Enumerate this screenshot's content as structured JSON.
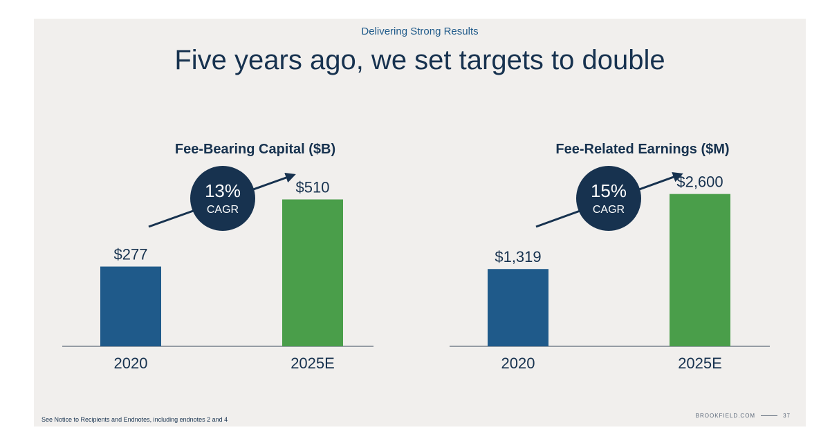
{
  "header": {
    "kicker": "Delivering Strong Results",
    "title": "Five years ago, we set targets to double"
  },
  "colors": {
    "background": "#f1efed",
    "navy": "#17324f",
    "bar_2020": "#1f5a8a",
    "bar_2025": "#4a9e4a"
  },
  "chart_data": [
    {
      "type": "bar",
      "title": "Fee-Bearing Capital ($B)",
      "categories": [
        "2020",
        "2025E"
      ],
      "values": [
        277,
        510
      ],
      "value_labels": [
        "$277",
        "$510"
      ],
      "cagr": {
        "value": "13%",
        "label": "CAGR"
      },
      "ylim": [
        0,
        600
      ]
    },
    {
      "type": "bar",
      "title": "Fee-Related Earnings ($M)",
      "categories": [
        "2020",
        "2025E"
      ],
      "values": [
        1319,
        2600
      ],
      "value_labels": [
        "$1,319",
        "$2,600"
      ],
      "cagr": {
        "value": "15%",
        "label": "CAGR"
      },
      "ylim": [
        0,
        2950
      ]
    }
  ],
  "footer": {
    "note": "See Notice to Recipients and Endnotes, including endnotes 2 and 4",
    "site": "BROOKFIELD.COM",
    "page": "37"
  }
}
